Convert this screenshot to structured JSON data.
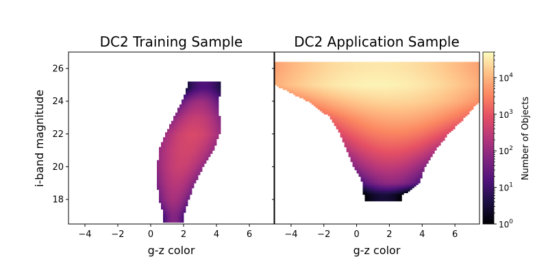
{
  "chart_data": [
    {
      "type": "heatmap",
      "title": "DC2 Training Sample",
      "xlabel": "g-z color",
      "ylabel": "i-band magnitude",
      "xlim": [
        -5,
        7.5
      ],
      "ylim": [
        16.5,
        27
      ],
      "xticks": [
        -4,
        -2,
        0,
        2,
        4,
        6
      ],
      "yticks": [
        18,
        20,
        22,
        24,
        26
      ],
      "xtick_labels": [
        "−4",
        "−2",
        "0",
        "2",
        "4",
        "6"
      ],
      "ytick_labels": [
        "18",
        "20",
        "22",
        "24",
        "26"
      ],
      "occupied_region_by_magnitude": [
        {
          "mag": 17.0,
          "color_min": 0.8,
          "color_max": 2.0,
          "peak_density": 60
        },
        {
          "mag": 18.0,
          "color_min": 0.5,
          "color_max": 2.3,
          "peak_density": 150
        },
        {
          "mag": 19.0,
          "color_min": 0.4,
          "color_max": 2.7,
          "peak_density": 250
        },
        {
          "mag": 20.0,
          "color_min": 0.4,
          "color_max": 3.2,
          "peak_density": 400
        },
        {
          "mag": 21.0,
          "color_min": 0.5,
          "color_max": 3.8,
          "peak_density": 500
        },
        {
          "mag": 22.0,
          "color_min": 0.9,
          "color_max": 4.2,
          "peak_density": 600
        },
        {
          "mag": 23.0,
          "color_min": 1.4,
          "color_max": 4.2,
          "peak_density": 350
        },
        {
          "mag": 24.0,
          "color_min": 1.9,
          "color_max": 4.1,
          "peak_density": 120
        },
        {
          "mag": 24.8,
          "color_min": 2.2,
          "color_max": 4.3,
          "peak_density": 15
        }
      ]
    },
    {
      "type": "heatmap",
      "title": "DC2 Application Sample",
      "xlabel": "g-z color",
      "xlim": [
        -5,
        7.5
      ],
      "ylim": [
        16.5,
        27
      ],
      "xticks": [
        -4,
        -2,
        0,
        2,
        4,
        6
      ],
      "xtick_labels": [
        "−4",
        "−2",
        "0",
        "2",
        "4",
        "6"
      ],
      "occupied_region_by_magnitude": [
        {
          "mag": 18.3,
          "color_min": 0.3,
          "color_max": 3.0,
          "peak_density": 3
        },
        {
          "mag": 19.0,
          "color_min": 0.4,
          "color_max": 3.8,
          "peak_density": 80
        },
        {
          "mag": 20.0,
          "color_min": -0.2,
          "color_max": 4.2,
          "peak_density": 300
        },
        {
          "mag": 21.0,
          "color_min": -0.6,
          "color_max": 4.8,
          "peak_density": 1000
        },
        {
          "mag": 22.0,
          "color_min": -1.0,
          "color_max": 5.6,
          "peak_density": 3000
        },
        {
          "mag": 23.0,
          "color_min": -1.6,
          "color_max": 6.6,
          "peak_density": 8000
        },
        {
          "mag": 24.0,
          "color_min": -3.0,
          "color_max": 7.5,
          "peak_density": 20000
        },
        {
          "mag": 25.0,
          "color_min": -5.0,
          "color_max": 7.5,
          "peak_density": 40000
        },
        {
          "mag": 26.0,
          "color_min": -5.0,
          "color_max": 7.5,
          "peak_density": 30000
        }
      ]
    }
  ],
  "colorbar": {
    "label": "Number of Objects",
    "scale": "log",
    "range": [
      1,
      50000
    ],
    "colormap": "magma",
    "ticks": [
      {
        "value": 1,
        "base": "10",
        "exp": "0"
      },
      {
        "value": 10,
        "base": "10",
        "exp": "1"
      },
      {
        "value": 100,
        "base": "10",
        "exp": "2"
      },
      {
        "value": 1000,
        "base": "10",
        "exp": "3"
      },
      {
        "value": 10000,
        "base": "10",
        "exp": "4"
      }
    ]
  }
}
